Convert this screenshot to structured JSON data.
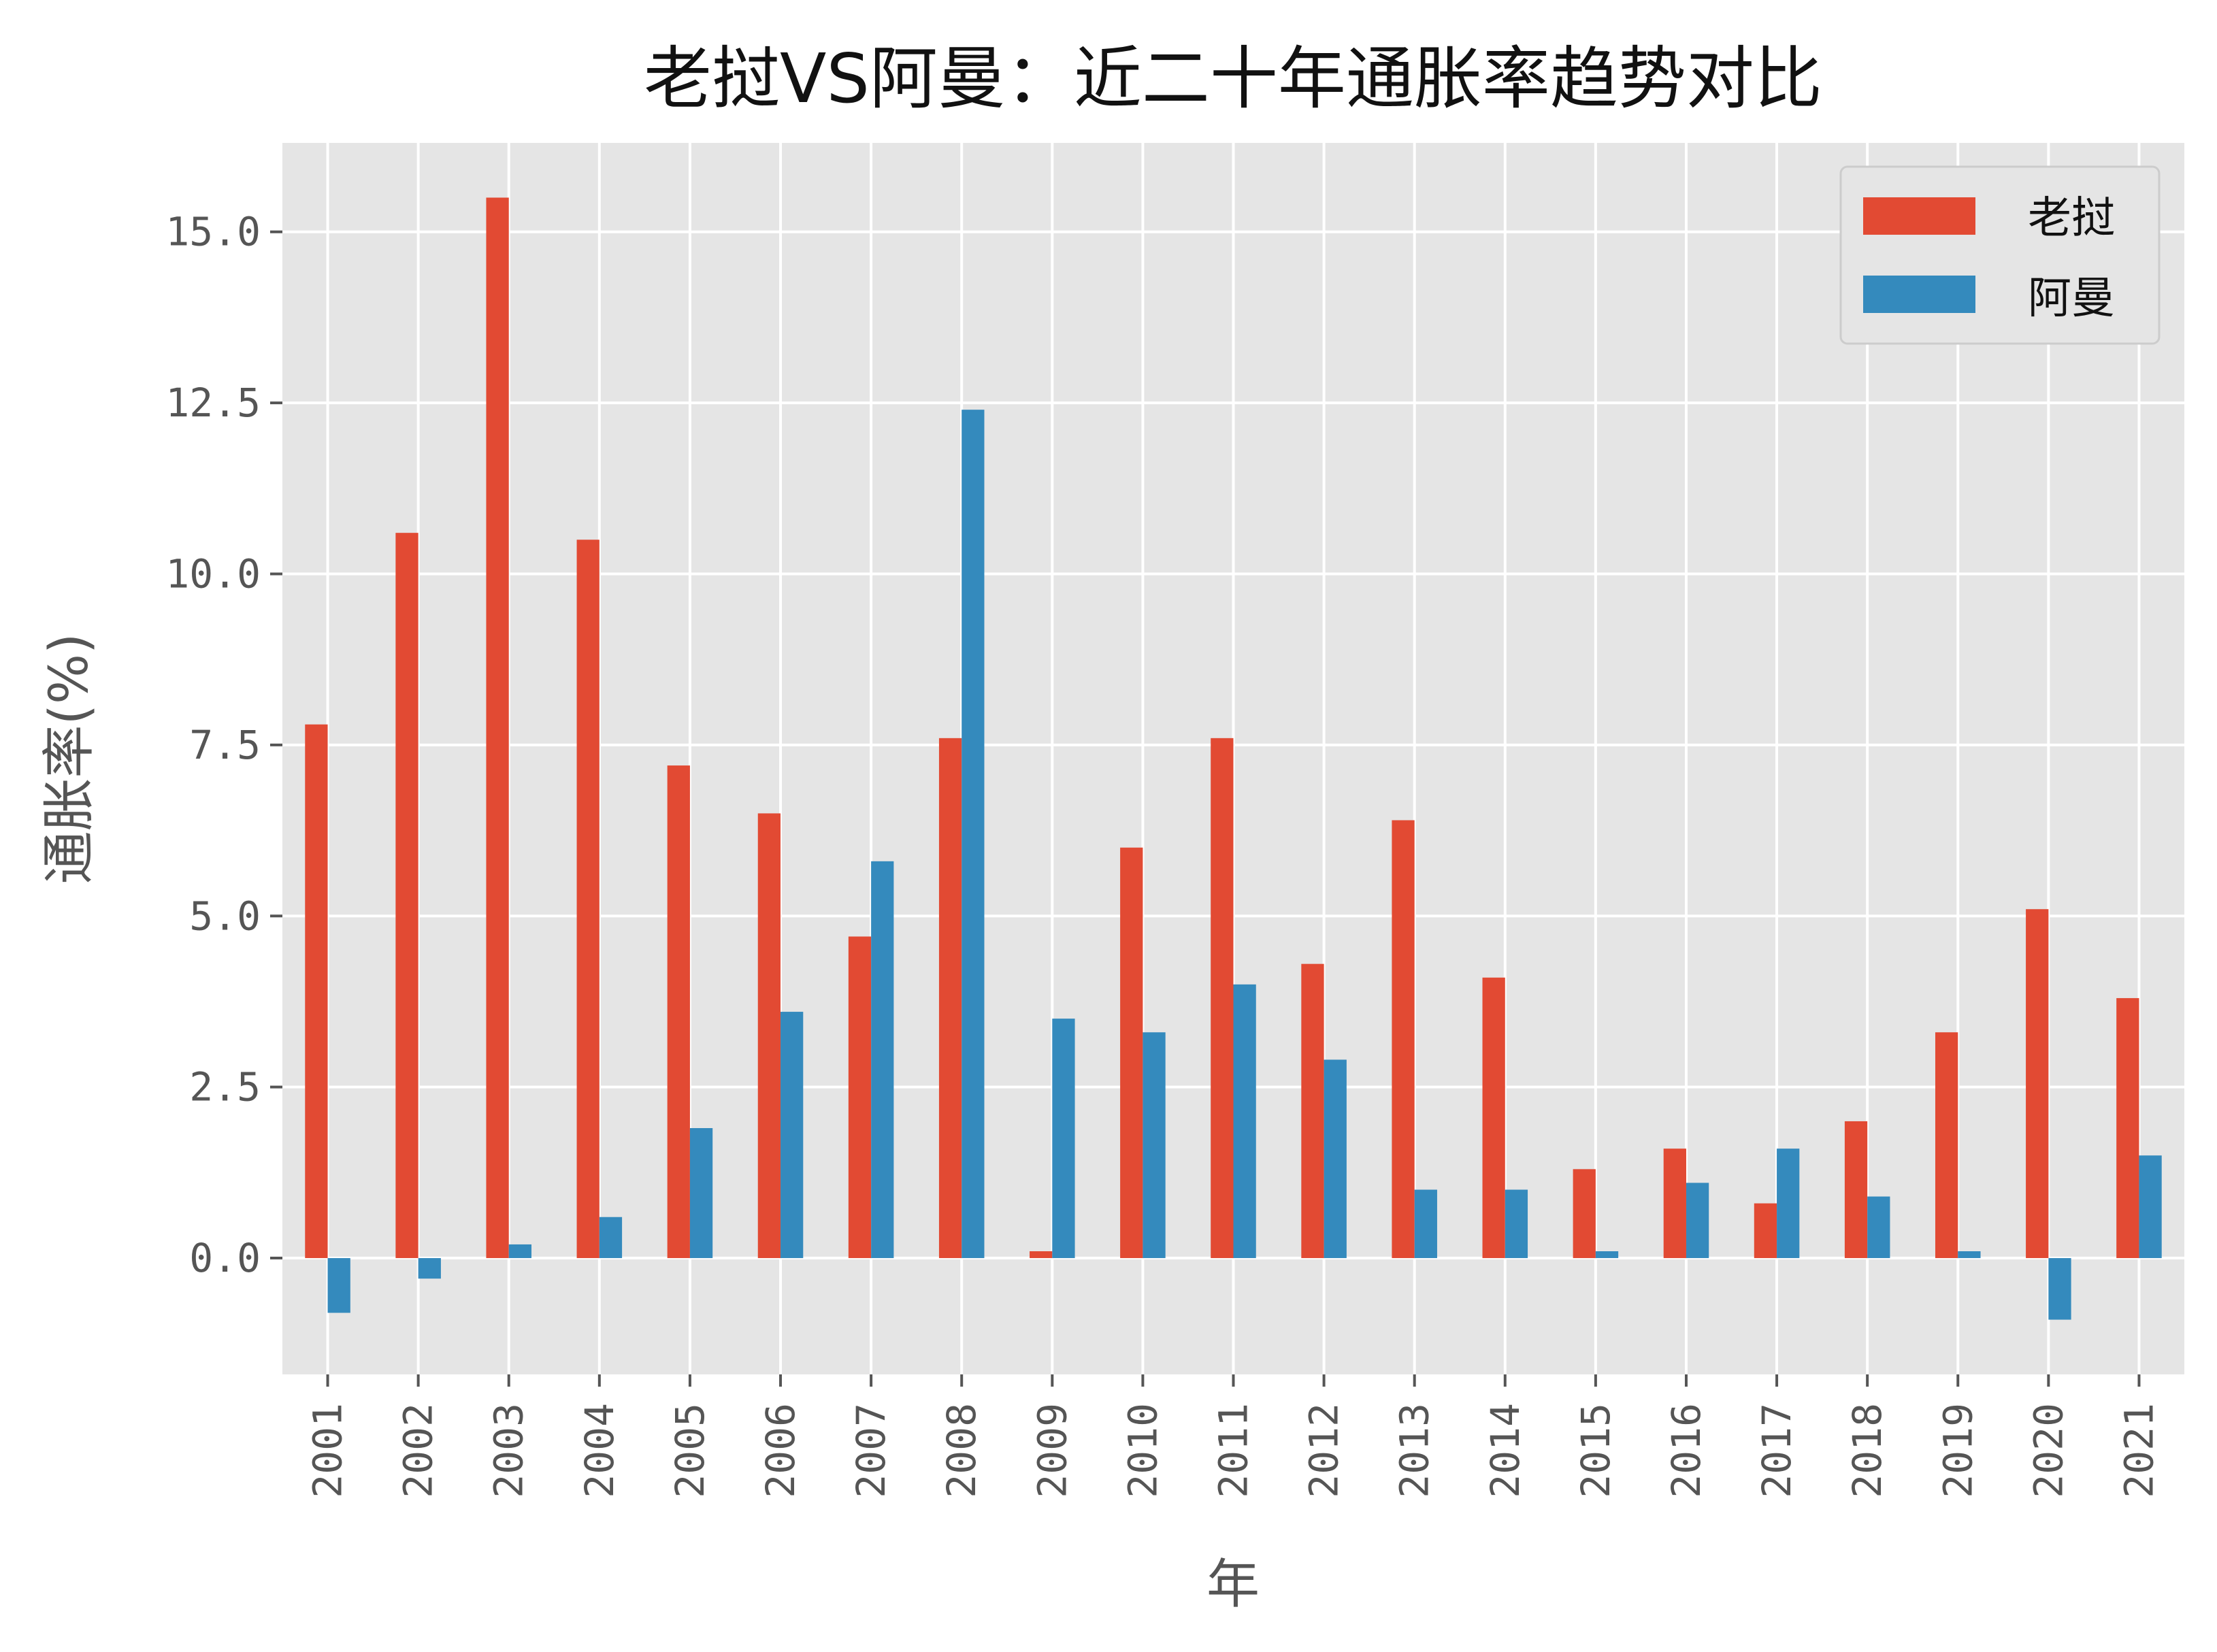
{
  "chart_data": {
    "type": "bar",
    "title": "老挝VS阿曼：近二十年通胀率趋势对比",
    "xlabel": "年",
    "ylabel": "通胀率(%)",
    "categories": [
      "2001",
      "2002",
      "2003",
      "2004",
      "2005",
      "2006",
      "2007",
      "2008",
      "2009",
      "2010",
      "2011",
      "2012",
      "2013",
      "2014",
      "2015",
      "2016",
      "2017",
      "2018",
      "2019",
      "2020",
      "2021"
    ],
    "series": [
      {
        "name": "老挝",
        "color": "#E24A33",
        "values": [
          7.8,
          10.6,
          15.5,
          10.5,
          7.2,
          6.5,
          4.7,
          7.6,
          0.1,
          6.0,
          7.6,
          4.3,
          6.4,
          4.1,
          1.3,
          1.6,
          0.8,
          2.0,
          3.3,
          5.1,
          3.8
        ]
      },
      {
        "name": "阿曼",
        "color": "#348ABD",
        "values": [
          -0.8,
          -0.3,
          0.2,
          0.6,
          1.9,
          3.6,
          5.8,
          12.4,
          3.5,
          3.3,
          4.0,
          2.9,
          1.0,
          1.0,
          0.1,
          1.1,
          1.6,
          0.9,
          0.1,
          -0.9,
          1.5
        ]
      }
    ],
    "ylim": [
      -1.7,
      16.3
    ],
    "yticks": [
      0.0,
      2.5,
      5.0,
      7.5,
      10.0,
      12.5,
      15.0
    ],
    "ytick_labels": [
      "0.0",
      "2.5",
      "5.0",
      "7.5",
      "10.0",
      "12.5",
      "15.0"
    ],
    "grid": true,
    "legend_position": "top-right"
  }
}
